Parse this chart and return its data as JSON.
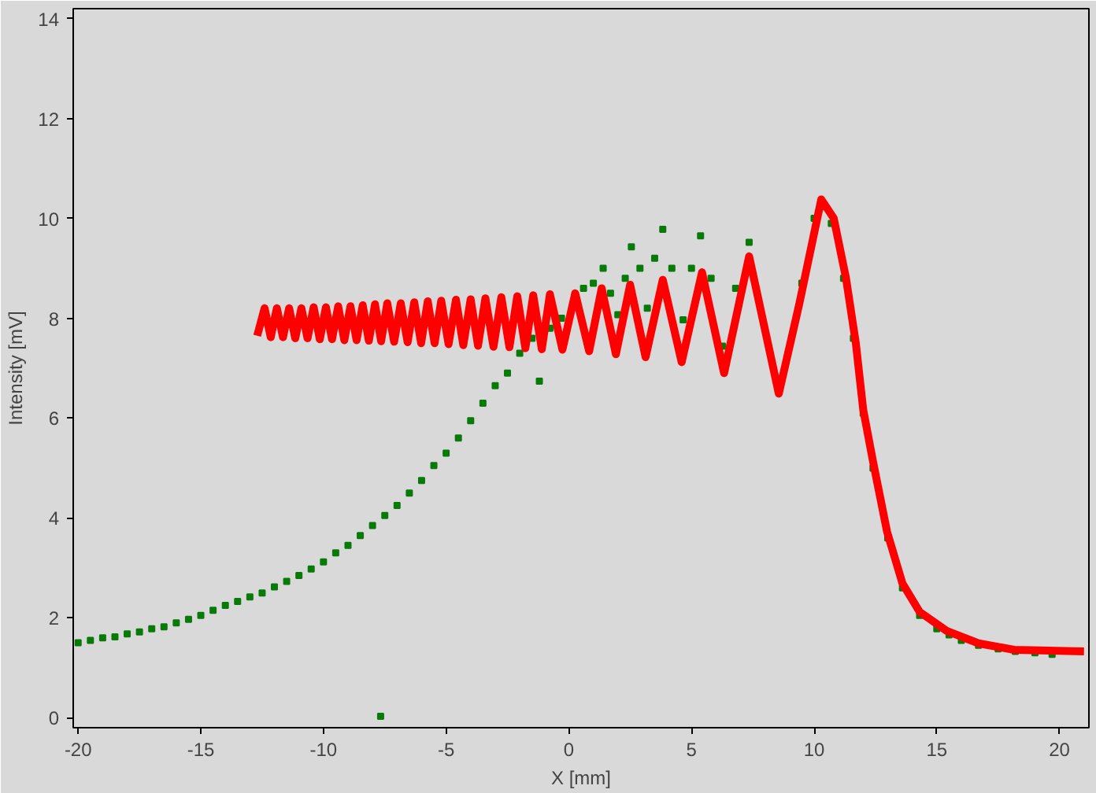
{
  "chart_data": {
    "type": "scatter",
    "xlabel": "X [mm]",
    "ylabel": "Intensity [mV]",
    "xlim": [
      -20.2,
      21.2
    ],
    "ylim": [
      -0.2,
      14.2
    ],
    "xticks": [
      -20,
      -15,
      -10,
      -5,
      0,
      5,
      10,
      15,
      20
    ],
    "yticks": [
      0,
      2,
      4,
      6,
      8,
      10,
      12,
      14
    ],
    "grid": false,
    "series": [
      {
        "marker": "square",
        "color": "#087a08",
        "x": [
          -20,
          -19.5,
          -19,
          -18.5,
          -18,
          -17.5,
          -17,
          -16.5,
          -16,
          -15.5,
          -15,
          -14.5,
          -14,
          -13.5,
          -13,
          -12.5,
          -12,
          -11.5,
          -11,
          -10.5,
          -10,
          -9.5,
          -9,
          -8.5,
          -8,
          -7.67,
          -7.5,
          -7,
          -6.5,
          -6,
          -5.5,
          -5,
          -4.5,
          -4,
          -3.5,
          -3,
          -2.5,
          -2,
          -1.5,
          -1.2,
          -0.77,
          -0.3,
          0.6,
          1.0,
          1.4,
          1.7,
          2.0,
          2.3,
          2.55,
          2.9,
          3.2,
          3.5,
          3.83,
          4.2,
          4.66,
          5.0,
          5.37,
          5.8,
          6.26,
          6.8,
          7.35,
          7.9,
          9.0,
          9.5,
          10.0,
          10.7,
          11.2,
          11.6,
          12.0,
          12.4,
          13.0,
          13.6,
          14.3,
          15.0,
          15.5,
          16.0,
          16.7,
          17.5,
          18.2,
          19.0,
          19.7
        ],
        "values": [
          1.5,
          1.55,
          1.6,
          1.62,
          1.68,
          1.72,
          1.78,
          1.82,
          1.9,
          1.97,
          2.05,
          2.15,
          2.25,
          2.33,
          2.42,
          2.5,
          2.62,
          2.73,
          2.85,
          2.98,
          3.12,
          3.3,
          3.45,
          3.65,
          3.85,
          0.03,
          4.05,
          4.25,
          4.5,
          4.75,
          5.05,
          5.3,
          5.6,
          5.95,
          6.3,
          6.65,
          6.9,
          7.3,
          7.6,
          6.74,
          7.8,
          8.0,
          8.6,
          8.7,
          9.0,
          8.5,
          8.07,
          8.8,
          9.43,
          9.0,
          8.2,
          9.2,
          9.78,
          9.0,
          7.97,
          9.0,
          9.65,
          8.8,
          7.44,
          8.6,
          9.52,
          null,
          null,
          8.7,
          10.0,
          9.9,
          8.8,
          7.6,
          6.1,
          5.0,
          3.6,
          2.6,
          2.05,
          1.78,
          1.66,
          1.55,
          1.45,
          1.38,
          1.33,
          1.3,
          1.27
        ]
      },
      {
        "type": "line",
        "color": "#ff0000",
        "x": [
          -12.7,
          -12.4,
          -12.15,
          -11.9,
          -11.65,
          -11.4,
          -11.15,
          -10.9,
          -10.65,
          -10.4,
          -10.15,
          -9.9,
          -9.65,
          -9.4,
          -9.15,
          -8.9,
          -8.65,
          -8.4,
          -8.15,
          -7.9,
          -7.65,
          -7.4,
          -7.12,
          -6.85,
          -6.57,
          -6.3,
          -6.02,
          -5.75,
          -5.47,
          -5.2,
          -4.9,
          -4.6,
          -4.3,
          -4.0,
          -3.7,
          -3.4,
          -3.07,
          -2.75,
          -2.42,
          -2.1,
          -1.77,
          -1.45,
          -1.1,
          -0.77,
          -0.26,
          0.26,
          0.83,
          1.34,
          1.92,
          2.5,
          3.13,
          3.83,
          4.6,
          5.43,
          6.33,
          7.35,
          8.56,
          9.4,
          10.29,
          10.8,
          11.3,
          11.7,
          12.0,
          12.4,
          12.97,
          13.6,
          14.3,
          15.4,
          16.7,
          18.15,
          21.0
        ],
        "values": [
          7.65,
          8.2,
          7.62,
          8.2,
          7.62,
          8.2,
          7.6,
          8.2,
          7.6,
          8.22,
          7.58,
          8.22,
          7.58,
          8.24,
          7.56,
          8.24,
          7.56,
          8.26,
          7.55,
          8.28,
          7.54,
          8.3,
          7.53,
          8.3,
          7.52,
          8.32,
          7.5,
          8.34,
          7.5,
          8.35,
          7.48,
          8.37,
          7.46,
          8.38,
          7.45,
          8.4,
          7.43,
          8.42,
          7.42,
          8.44,
          7.4,
          8.46,
          7.38,
          8.48,
          7.37,
          8.5,
          7.34,
          8.6,
          7.28,
          8.67,
          7.22,
          8.77,
          7.12,
          8.92,
          6.9,
          9.24,
          6.49,
          8.3,
          10.38,
          10.0,
          8.8,
          7.5,
          6.17,
          5.13,
          3.73,
          2.69,
          2.12,
          1.74,
          1.49,
          1.36,
          1.33
        ]
      }
    ]
  }
}
